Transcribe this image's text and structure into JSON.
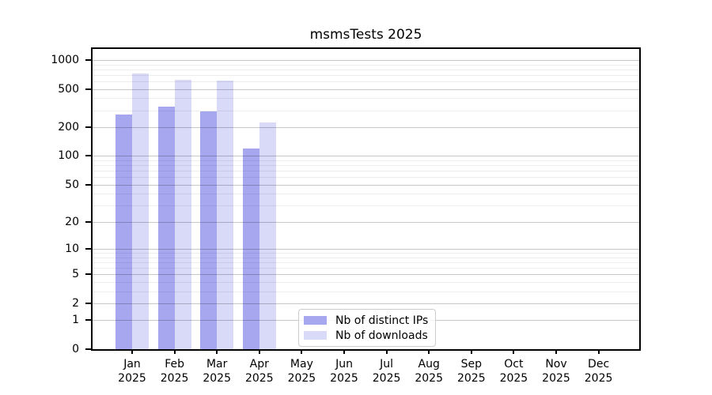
{
  "title": "msmsTests 2025",
  "colors": {
    "ips_bar": "#a7a7f0",
    "downloads_bar": "#d9d9f8",
    "axis": "#000000",
    "grid_major": "rgba(0,0,0,0.22)",
    "grid_minor": "rgba(0,0,0,0.07)",
    "legend_border": "#cccccc"
  },
  "chart_data": {
    "type": "bar",
    "title": "msmsTests 2025",
    "categories": [
      "Jan 2025",
      "Feb 2025",
      "Mar 2025",
      "Apr 2025",
      "May 2025",
      "Jun 2025",
      "Jul 2025",
      "Aug 2025",
      "Sep 2025",
      "Oct 2025",
      "Nov 2025",
      "Dec 2025"
    ],
    "month_labels": [
      "Jan",
      "Feb",
      "Mar",
      "Apr",
      "May",
      "Jun",
      "Jul",
      "Aug",
      "Sep",
      "Oct",
      "Nov",
      "Dec"
    ],
    "year_label": "2025",
    "series": [
      {
        "name": "Nb of distinct IPs",
        "color": "#a7a7f0",
        "values": [
          270,
          330,
          290,
          120,
          null,
          null,
          null,
          null,
          null,
          null,
          null,
          null
        ]
      },
      {
        "name": "Nb of downloads",
        "color": "#d9d9f8",
        "values": [
          720,
          620,
          610,
          225,
          null,
          null,
          null,
          null,
          null,
          null,
          null,
          null
        ]
      }
    ],
    "xlabel": "",
    "ylabel": "",
    "y_scale": "log10(1+v)",
    "ylim": [
      0,
      1400
    ],
    "y_major_ticks": [
      1000,
      500,
      200,
      100,
      50,
      20,
      10,
      5,
      2,
      1,
      0
    ],
    "y_minor_gridlines": [
      900,
      800,
      700,
      600,
      400,
      300,
      90,
      80,
      70,
      60,
      40,
      30,
      9,
      8,
      7,
      6,
      4,
      3
    ],
    "grid": true,
    "legend_position": "lower center"
  },
  "legend": {
    "items": [
      {
        "label": "Nb of distinct IPs",
        "color": "#a7a7f0"
      },
      {
        "label": "Nb of downloads",
        "color": "#d9d9f8"
      }
    ]
  }
}
